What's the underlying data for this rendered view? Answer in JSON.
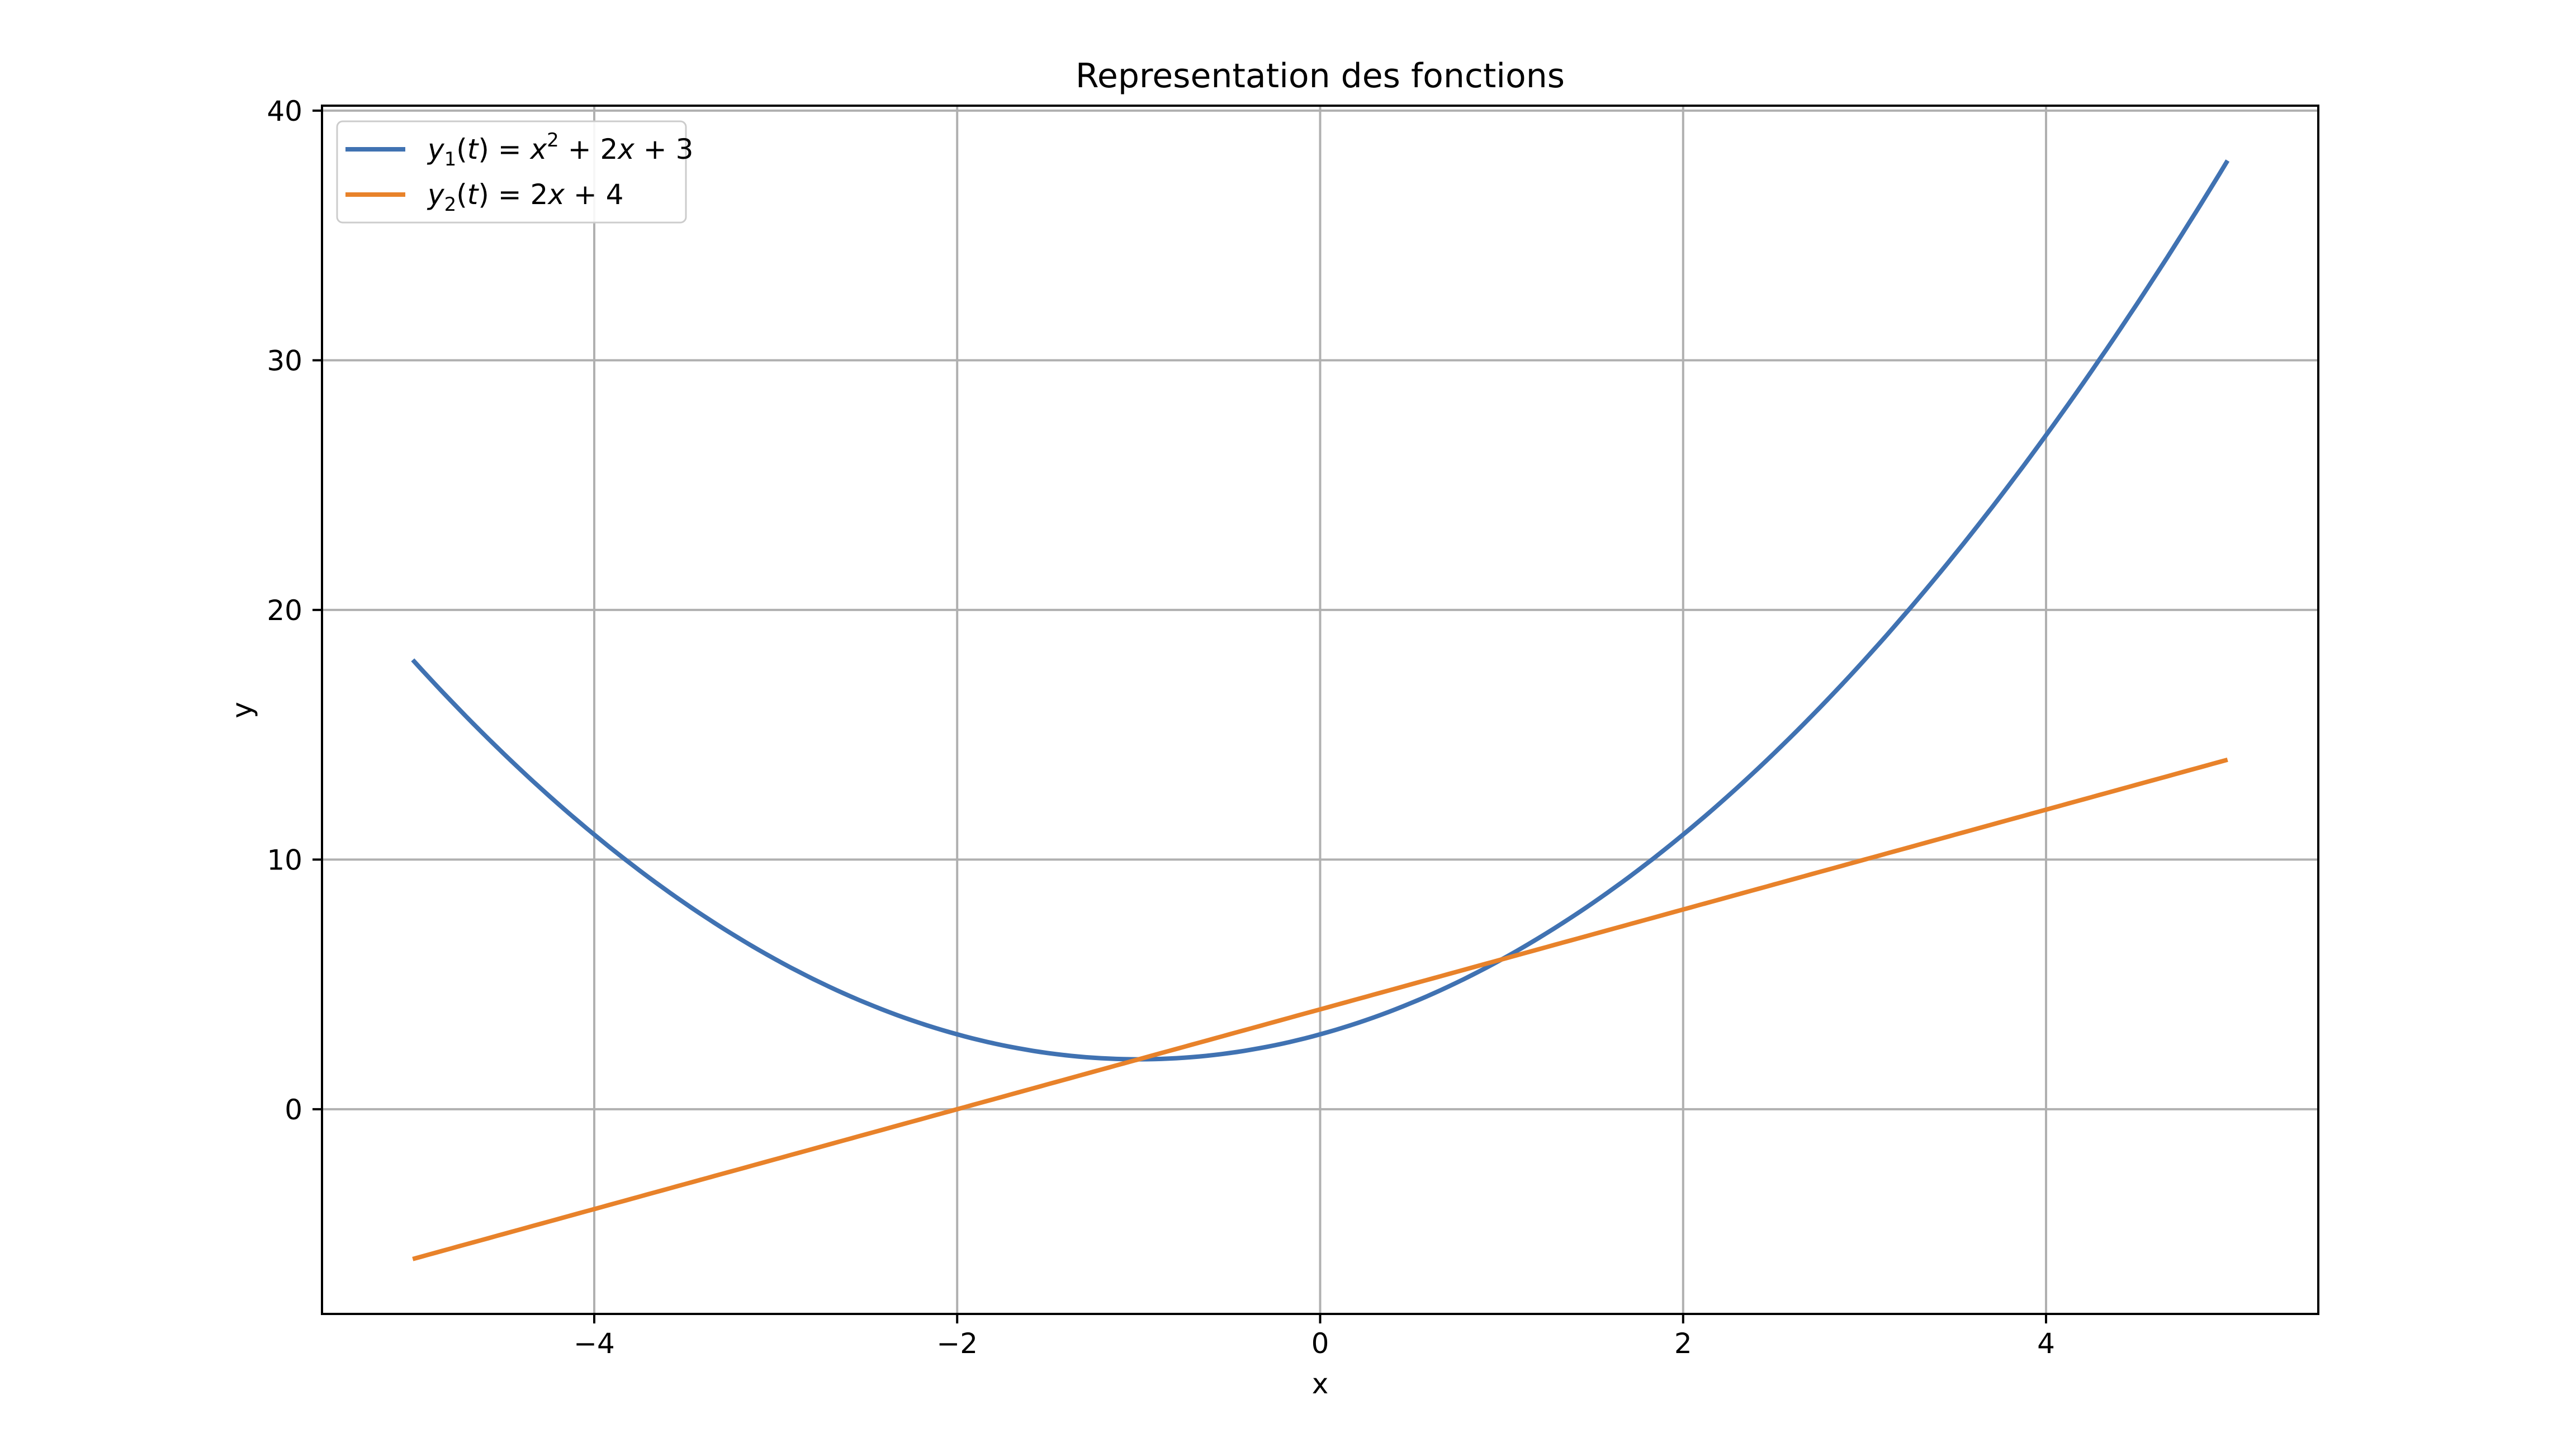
{
  "chart_data": {
    "type": "line",
    "title": "Representation des fonctions",
    "xlabel": "x",
    "ylabel": "y",
    "xlim": [
      -5.5,
      5.5
    ],
    "ylim": [
      -8.2,
      40.2
    ],
    "grid": true,
    "legend_location": "upper left",
    "xticks": {
      "values": [
        -4,
        -2,
        0,
        2,
        4
      ],
      "labels": [
        "−4",
        "−2",
        "0",
        "2",
        "4"
      ]
    },
    "yticks": {
      "values": [
        0,
        10,
        20,
        30,
        40
      ],
      "labels": [
        "0",
        "10",
        "20",
        "30",
        "40"
      ]
    },
    "colors": {
      "background": "#ffffff",
      "grid": "#b0b0b0",
      "axes_edge": "#000000",
      "text": "#000000",
      "legend_border": "#cccccc",
      "legend_fill": "#ffffff"
    },
    "series": [
      {
        "name": "y1(t) = x^2 + 2x + 3",
        "color": "#4072b2",
        "poly": [
          1,
          2,
          3
        ],
        "x_domain": [
          -5,
          5
        ],
        "x_samples": [
          -5,
          -4,
          -3,
          -2,
          -1,
          0,
          1,
          2,
          3,
          4,
          5
        ],
        "y_samples": [
          18,
          11,
          6,
          3,
          2,
          3,
          6,
          11,
          18,
          27,
          38
        ],
        "label_parts": [
          {
            "s": "y",
            "it": true
          },
          {
            "s": "1",
            "sub": true
          },
          {
            "s": "(",
            "it": false
          },
          {
            "s": "t",
            "it": true
          },
          {
            "s": ") = ",
            "it": false
          },
          {
            "s": "x",
            "it": true
          },
          {
            "s": "2",
            "sup": true
          },
          {
            "s": " + 2",
            "it": false
          },
          {
            "s": "x",
            "it": true
          },
          {
            "s": " + 3",
            "it": false
          }
        ]
      },
      {
        "name": "y2(t) = 2x + 4",
        "color": "#e8822a",
        "poly": [
          2,
          4
        ],
        "x_domain": [
          -5,
          5
        ],
        "x_samples": [
          -5,
          -4,
          -3,
          -2,
          -1,
          0,
          1,
          2,
          3,
          4,
          5
        ],
        "y_samples": [
          -6,
          -4,
          -2,
          0,
          2,
          4,
          6,
          8,
          10,
          12,
          14
        ],
        "label_parts": [
          {
            "s": "y",
            "it": true
          },
          {
            "s": "2",
            "sub": true
          },
          {
            "s": "(",
            "it": false
          },
          {
            "s": "t",
            "it": true
          },
          {
            "s": ") = 2",
            "it": false
          },
          {
            "s": "x",
            "it": true
          },
          {
            "s": " + 4",
            "it": false
          }
        ]
      }
    ]
  }
}
